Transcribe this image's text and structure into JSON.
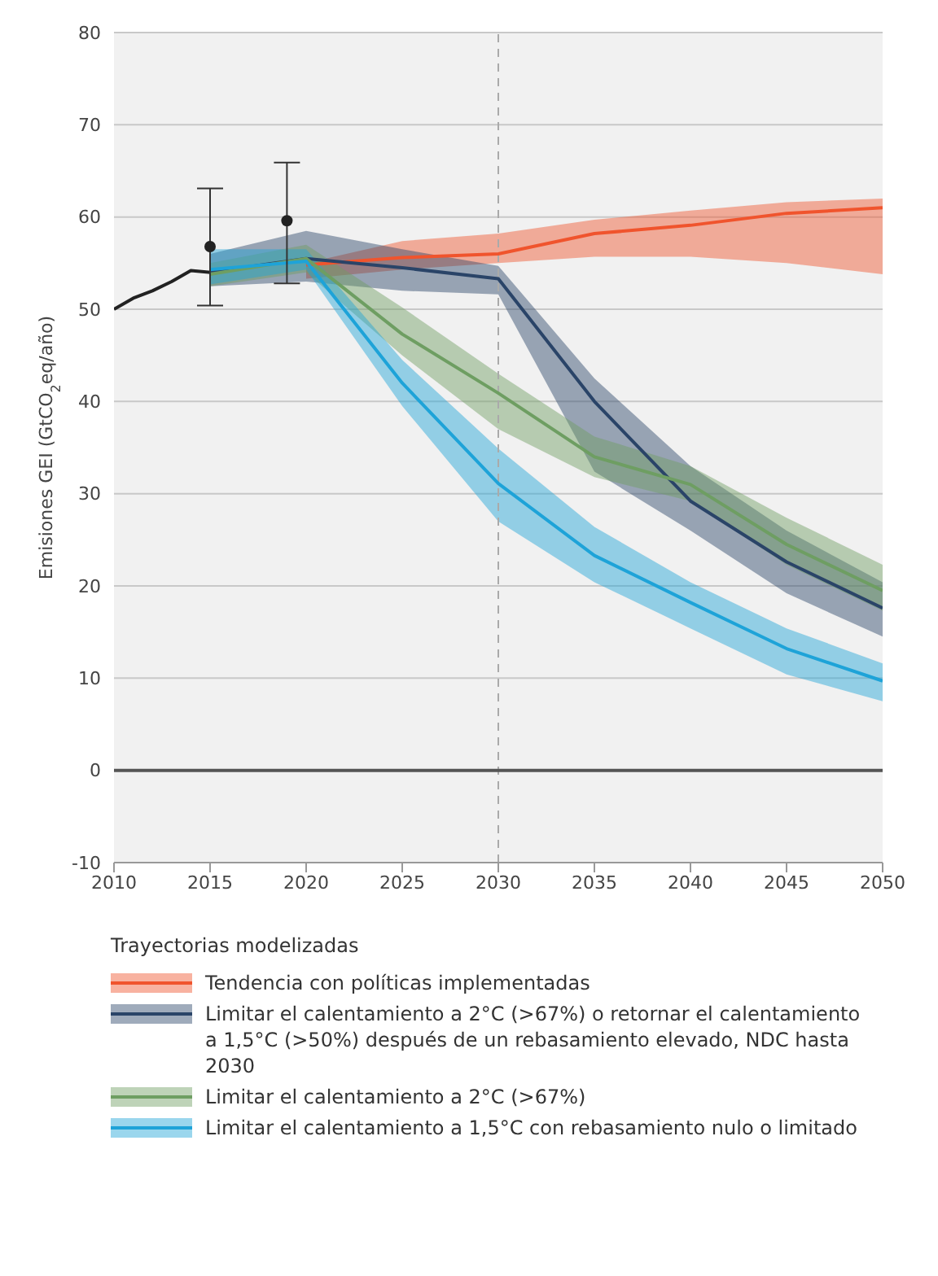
{
  "chart_data": {
    "type": "line",
    "ylabel": "Emisiones GEI (GtCO$_{2}$eq/año)",
    "legend_title": "Trayectorias modelizadas",
    "legend": "bottom",
    "grid": "y",
    "marker": "none",
    "xlim": [
      2010,
      2050
    ],
    "xticks": [
      2010,
      2015,
      2020,
      2025,
      2030,
      2035,
      2040,
      2045,
      2050
    ],
    "ylim": [
      -10,
      80
    ],
    "yticks": [
      -10,
      0,
      10,
      20,
      30,
      40,
      50,
      60,
      70,
      80
    ],
    "ref_lines": [
      {
        "axis": "x",
        "value": 2030,
        "color": "#aaaaaa",
        "line_style": "dashed"
      },
      {
        "axis": "y",
        "value": 0,
        "color": "#555555",
        "line_style": "solid"
      }
    ],
    "series": [
      {
        "type": "line",
        "color": "#222222",
        "x": [
          2010,
          2011,
          2012,
          2013,
          2014,
          2015
        ],
        "values": [
          50,
          51.2,
          52,
          53,
          54.2,
          54
        ]
      },
      {
        "name": "Tendencia con políticas implementadas",
        "color": "#f0542d",
        "x": [
          2020,
          2025,
          2030,
          2035,
          2040,
          2045,
          2050
        ],
        "values": [
          54.8,
          55.6,
          56,
          58.2,
          59.1,
          60.4,
          61
        ],
        "lower": [
          53.3,
          54.3,
          55,
          55.7,
          55.7,
          55,
          53.8
        ],
        "upper": [
          55,
          57.4,
          58.2,
          59.7,
          60.7,
          61.6,
          62
        ]
      },
      {
        "name": "Limitar el calentamiento a 2°C (>67%) o retornar el calentamiento a 1,5°C (>50%) después de un rebasamiento elevado, NDC hasta 2030",
        "color": "#2a4468",
        "x": [
          2015,
          2020,
          2025,
          2030,
          2035,
          2040,
          2045,
          2050
        ],
        "values": [
          54,
          55.5,
          54.5,
          53.3,
          40,
          29.2,
          22.6,
          17.6
        ],
        "lower": [
          52.5,
          53,
          52,
          51.6,
          32.4,
          26,
          19.2,
          14.5
        ],
        "upper": [
          56,
          58.5,
          56.5,
          54.7,
          42.5,
          33,
          26,
          20.4
        ]
      },
      {
        "name": "Limitar el calentamiento a 2°C (>67%)",
        "color": "#6e9e62",
        "x": [
          2015,
          2020,
          2025,
          2030,
          2035,
          2040,
          2045,
          2050
        ],
        "values": [
          53.8,
          55.5,
          47.3,
          40.9,
          34,
          31,
          24.5,
          19.5
        ],
        "lower": [
          52.5,
          54,
          45,
          37,
          31.8,
          29.2,
          22.3,
          17.3
        ],
        "upper": [
          55,
          57,
          50.2,
          43,
          36.2,
          33,
          27.4,
          22.3
        ]
      },
      {
        "name": "Limitar el calentamiento a 1,5°C con rebasamiento nulo o limitado",
        "color": "#1ea3d8",
        "x": [
          2015,
          2020,
          2025,
          2030,
          2035,
          2040,
          2045,
          2050
        ],
        "values": [
          54.3,
          55.2,
          42,
          31.1,
          23.3,
          18.2,
          13.2,
          9.7
        ],
        "lower": [
          52.7,
          54.3,
          39.5,
          27,
          20.4,
          15.4,
          10.4,
          7.5
        ],
        "upper": [
          56.5,
          56.5,
          44.5,
          34.9,
          26.4,
          20.4,
          15.4,
          11.6
        ]
      },
      {
        "type": "scatter",
        "color": "#222222",
        "marker": "circle",
        "x": [
          2015,
          2019
        ],
        "values": [
          56.8,
          59.6
        ],
        "errors": [
          [
            50.4,
            63.1
          ],
          [
            52.8,
            65.9
          ]
        ]
      }
    ]
  }
}
